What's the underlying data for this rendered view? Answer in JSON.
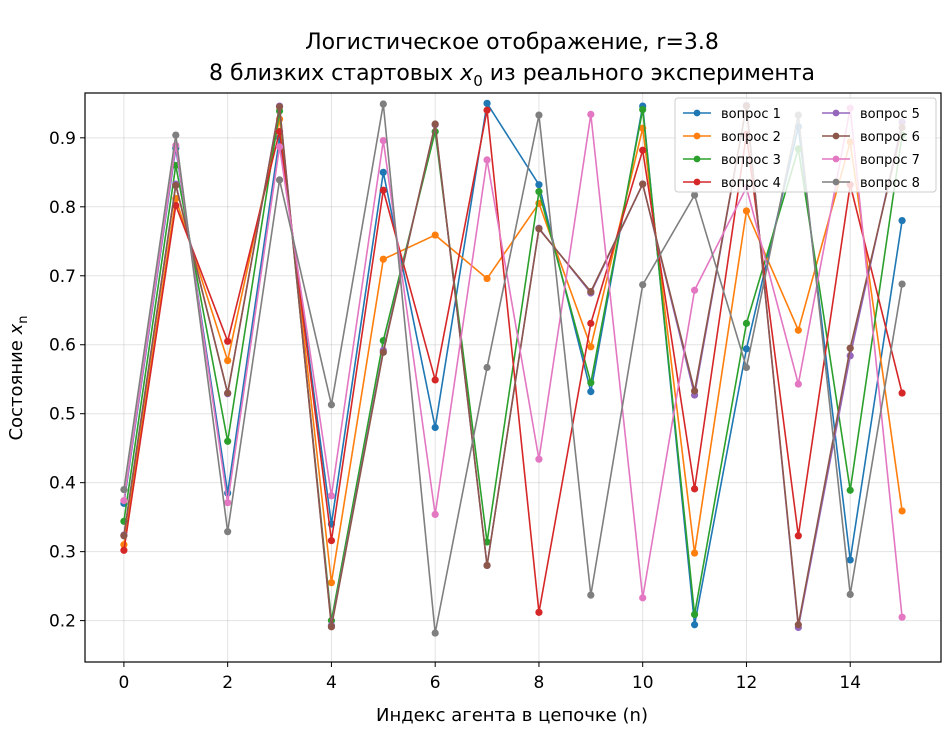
{
  "chart_data": {
    "type": "line",
    "title_line1": "Логистическое отображение, r=3.8",
    "title_line2_prefix": "8 близких стартовых ",
    "title_line2_var": "x",
    "title_line2_sub": "0",
    "title_line2_suffix": " из реального эксперимента",
    "xlabel": "Индекс агента в цепочке (n)",
    "ylabel_prefix": "Состояние ",
    "ylabel_var": "x",
    "ylabel_sub": "n",
    "xlim": [
      -0.75,
      15.75
    ],
    "ylim": [
      0.14,
      0.965
    ],
    "xticks": [
      0,
      2,
      4,
      6,
      8,
      10,
      12,
      14
    ],
    "yticks": [
      0.2,
      0.3,
      0.4,
      0.5,
      0.6,
      0.7,
      0.8,
      0.9
    ],
    "grid": true,
    "legend_position": "top-right",
    "x": [
      0,
      1,
      2,
      3,
      4,
      5,
      6,
      7,
      8,
      9,
      10,
      11,
      12,
      13,
      14,
      15
    ],
    "series": [
      {
        "name": "вопрос 1",
        "color": "#1f77b4",
        "values": [
          0.37,
          0.885,
          0.385,
          0.9,
          0.34,
          0.85,
          0.48,
          0.95,
          0.832,
          0.532,
          0.946,
          0.194,
          0.594,
          0.916,
          0.288,
          0.78
        ]
      },
      {
        "name": "вопрос 2",
        "color": "#ff7f0e",
        "values": [
          0.31,
          0.812,
          0.577,
          0.927,
          0.255,
          0.724,
          0.759,
          0.696,
          0.805,
          0.597,
          0.914,
          0.298,
          0.794,
          0.621,
          0.894,
          0.359
        ]
      },
      {
        "name": "вопрос 3",
        "color": "#2ca02c",
        "values": [
          0.344,
          0.86,
          0.46,
          0.939,
          0.2,
          0.606,
          0.909,
          0.314,
          0.822,
          0.545,
          0.941,
          0.209,
          0.631,
          0.884,
          0.389,
          0.904
        ]
      },
      {
        "name": "вопрос 4",
        "color": "#d62728",
        "values": [
          0.302,
          0.802,
          0.605,
          0.909,
          0.316,
          0.824,
          0.549,
          0.94,
          0.212,
          0.631,
          0.882,
          0.391,
          0.905,
          0.323,
          0.832,
          0.53
        ]
      },
      {
        "name": "вопрос 5",
        "color": "#9467bd",
        "values": [
          0.324,
          0.833,
          0.529,
          0.946,
          0.193,
          0.592,
          0.919,
          0.28,
          0.769,
          0.675,
          0.833,
          0.527,
          0.947,
          0.19,
          0.584,
          0.923
        ]
      },
      {
        "name": "вопрос 6",
        "color": "#8c564b",
        "values": [
          0.323,
          0.831,
          0.53,
          0.945,
          0.191,
          0.589,
          0.92,
          0.28,
          0.768,
          0.677,
          0.833,
          0.533,
          0.946,
          0.194,
          0.595,
          0.915
        ]
      },
      {
        "name": "вопрос 7",
        "color": "#e377c2",
        "values": [
          0.374,
          0.889,
          0.371,
          0.887,
          0.381,
          0.896,
          0.354,
          0.868,
          0.434,
          0.934,
          0.233,
          0.679,
          0.828,
          0.543,
          0.943,
          0.205
        ]
      },
      {
        "name": "вопрос 8",
        "color": "#7f7f7f",
        "values": [
          0.39,
          0.904,
          0.329,
          0.839,
          0.513,
          0.949,
          0.182,
          0.567,
          0.933,
          0.237,
          0.687,
          0.817,
          0.567,
          0.933,
          0.238,
          0.688
        ]
      }
    ]
  }
}
